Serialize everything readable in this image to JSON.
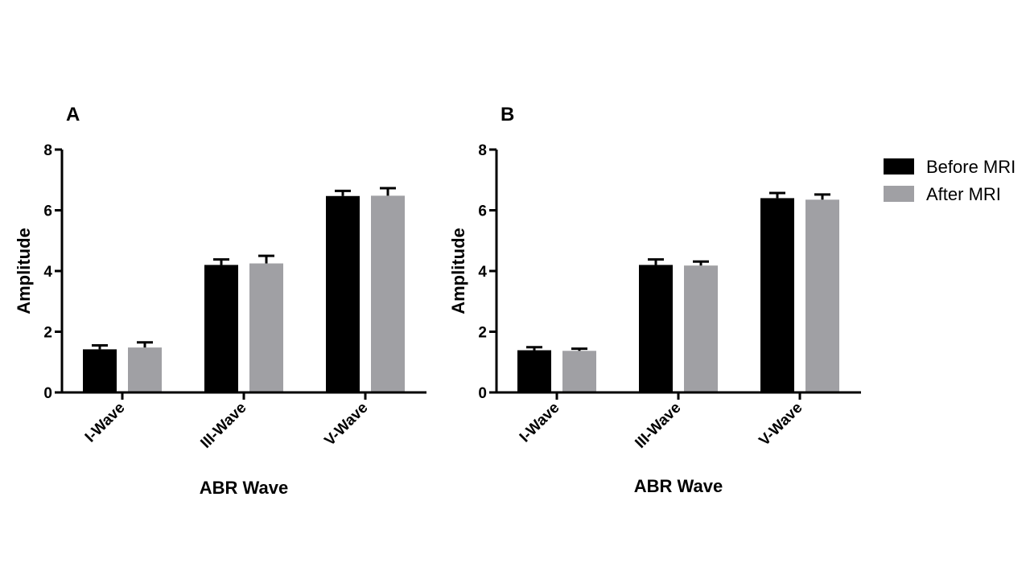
{
  "chart_data": [
    {
      "type": "bar",
      "title": "A",
      "xlabel": "ABR Wave",
      "ylabel": "Amplitude",
      "ylim": [
        0,
        8
      ],
      "yticks": [
        0,
        2,
        4,
        6,
        8
      ],
      "categories": [
        "I-Wave",
        "III-Wave",
        "V-Wave"
      ],
      "series": [
        {
          "name": "Before MRI",
          "values": [
            1.42,
            4.2,
            6.47
          ],
          "error": [
            0.13,
            0.18,
            0.17
          ],
          "color": "#000000"
        },
        {
          "name": "After MRI",
          "values": [
            1.48,
            4.25,
            6.48
          ],
          "error": [
            0.17,
            0.25,
            0.25
          ],
          "color": "#a0a0a4"
        }
      ]
    },
    {
      "type": "bar",
      "title": "B",
      "xlabel": "ABR Wave",
      "ylabel": "Amplitude",
      "ylim": [
        0,
        8
      ],
      "yticks": [
        0,
        2,
        4,
        6,
        8
      ],
      "categories": [
        "I-Wave",
        "III-Wave",
        "V-Wave"
      ],
      "series": [
        {
          "name": "Before MRI",
          "values": [
            1.39,
            4.2,
            6.4
          ],
          "error": [
            0.1,
            0.18,
            0.17
          ],
          "color": "#000000"
        },
        {
          "name": "After MRI",
          "values": [
            1.37,
            4.18,
            6.35
          ],
          "error": [
            0.07,
            0.13,
            0.17
          ],
          "color": "#a0a0a4"
        }
      ]
    }
  ],
  "legend": {
    "position": "right",
    "items": [
      {
        "label": "Before MRI",
        "color": "#000000"
      },
      {
        "label": "After MRI",
        "color": "#a0a0a4"
      }
    ]
  }
}
